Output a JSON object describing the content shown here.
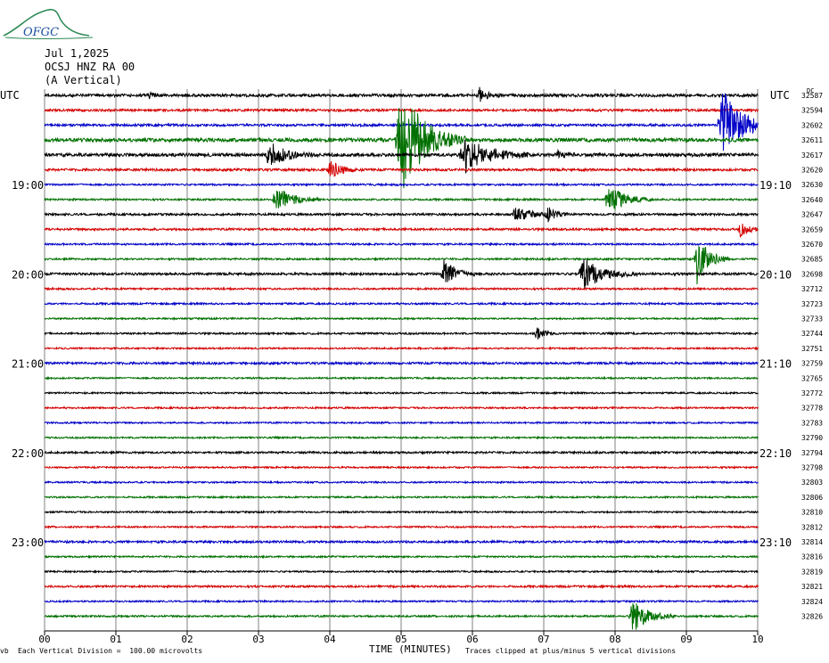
{
  "header": {
    "date": "Jul 1,2025",
    "station": "OCSJ HNZ RA 00",
    "component": "(A Vertical)",
    "logo_text": "OFGC"
  },
  "left_utc": "UTC",
  "right_utc": "UTC",
  "dc_label": "DC",
  "footer": {
    "scale": "Each Vertical Division =  100.00 microvolts",
    "xlabel": "TIME (MINUTES)",
    "clip_note": "Traces clipped at plus/minus 5 vertical divisions",
    "corner_mark": "vb"
  },
  "colors": {
    "black": "#000000",
    "red": "#d40000",
    "blue": "#0000c8",
    "green": "#007000",
    "grid": "#808080",
    "logo": "#2e8b57",
    "logo_text": "#1a4fa0"
  },
  "chart_data": {
    "type": "helicorder",
    "xlabel": "TIME (MINUTES)",
    "xlim": [
      0,
      10
    ],
    "x_ticks": [
      "00",
      "01",
      "02",
      "03",
      "04",
      "05",
      "06",
      "07",
      "08",
      "09",
      "10"
    ],
    "color_cycle": [
      "black",
      "red",
      "blue",
      "green"
    ],
    "left_time_labels": [
      {
        "row": 6,
        "label": "19:00"
      },
      {
        "row": 12,
        "label": "20:00"
      },
      {
        "row": 18,
        "label": "21:00"
      },
      {
        "row": 24,
        "label": "22:00"
      },
      {
        "row": 30,
        "label": "23:00"
      }
    ],
    "right_time_labels": [
      {
        "row": 6,
        "label": "19:10"
      },
      {
        "row": 12,
        "label": "20:10"
      },
      {
        "row": 18,
        "label": "21:10"
      },
      {
        "row": 24,
        "label": "22:10"
      },
      {
        "row": 30,
        "label": "23:10"
      }
    ],
    "dc_offsets": [
      "32587",
      "32594",
      "32602",
      "32611",
      "32617",
      "32620",
      "32630",
      "32640",
      "32647",
      "32659",
      "32670",
      "32685",
      "32698",
      "32712",
      "32723",
      "32733",
      "32744",
      "32751",
      "32759",
      "32765",
      "32772",
      "32778",
      "32783",
      "32790",
      "32794",
      "32798",
      "32803",
      "32806",
      "32810",
      "32812",
      "32814",
      "32816",
      "32819",
      "32821",
      "32824",
      "32826"
    ],
    "noise_levels": [
      1.6,
      1.3,
      1.3,
      2.0,
      1.8,
      1.3,
      1.0,
      1.0,
      1.2,
      1.2,
      1.0,
      1.0,
      1.3,
      1.0,
      1.0,
      0.9,
      1.0,
      0.9,
      1.2,
      0.9,
      0.9,
      0.9,
      0.9,
      0.9,
      1.1,
      0.9,
      0.9,
      0.9,
      0.9,
      0.9,
      1.2,
      0.9,
      0.9,
      1.1,
      0.9,
      1.0
    ],
    "events": [
      {
        "row": 0,
        "minute": 6.1,
        "amp": 8,
        "dur": 0.1
      },
      {
        "row": 0,
        "minute": 1.45,
        "amp": 3,
        "dur": 0.08
      },
      {
        "row": 2,
        "minute": 9.5,
        "amp": 40,
        "dur": 0.25
      },
      {
        "row": 3,
        "minute": 5.0,
        "amp": 60,
        "dur": 0.3
      },
      {
        "row": 4,
        "minute": 3.15,
        "amp": 15,
        "dur": 0.2
      },
      {
        "row": 4,
        "minute": 5.9,
        "amp": 20,
        "dur": 0.3
      },
      {
        "row": 4,
        "minute": 7.2,
        "amp": 4,
        "dur": 0.08
      },
      {
        "row": 5,
        "minute": 4.0,
        "amp": 12,
        "dur": 0.15
      },
      {
        "row": 7,
        "minute": 3.25,
        "amp": 15,
        "dur": 0.2
      },
      {
        "row": 7,
        "minute": 7.9,
        "amp": 18,
        "dur": 0.2
      },
      {
        "row": 8,
        "minute": 6.6,
        "amp": 8,
        "dur": 0.2
      },
      {
        "row": 8,
        "minute": 7.05,
        "amp": 8,
        "dur": 0.1
      },
      {
        "row": 9,
        "minute": 9.75,
        "amp": 8,
        "dur": 0.1
      },
      {
        "row": 11,
        "minute": 9.15,
        "amp": 28,
        "dur": 0.15
      },
      {
        "row": 12,
        "minute": 5.6,
        "amp": 18,
        "dur": 0.15
      },
      {
        "row": 12,
        "minute": 7.55,
        "amp": 18,
        "dur": 0.25
      },
      {
        "row": 16,
        "minute": 6.9,
        "amp": 7,
        "dur": 0.1
      },
      {
        "row": 35,
        "minute": 8.25,
        "amp": 18,
        "dur": 0.2
      }
    ]
  }
}
